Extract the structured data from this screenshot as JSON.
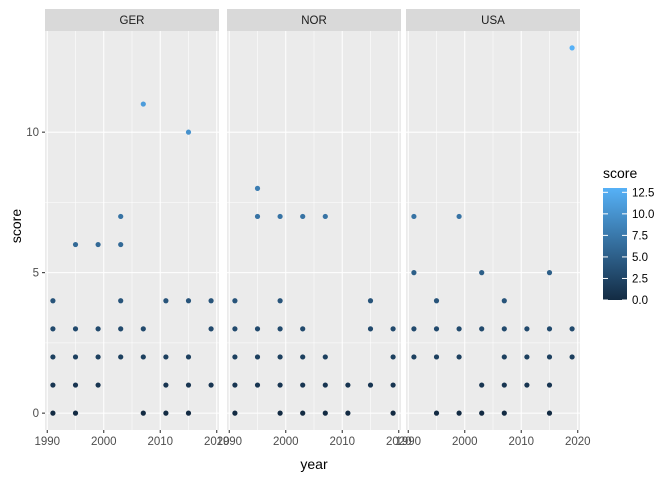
{
  "chart_data": {
    "type": "scatter",
    "facet_by": "country",
    "xlabel": "year",
    "ylabel": "score",
    "xlim": [
      1989.6,
      2020.4
    ],
    "ylim": [
      -0.6,
      13.6
    ],
    "x_ticks": [
      1990,
      2000,
      2010,
      2020
    ],
    "x_tick_labels": [
      "1990",
      "2000",
      "2010",
      "2020"
    ],
    "y_ticks": [
      0,
      5,
      10
    ],
    "y_tick_labels": [
      "0",
      "5",
      "10"
    ],
    "grid": true,
    "color_scale": {
      "title": "score",
      "low_color": "#132B43",
      "high_color": "#56B1F7",
      "limits": [
        0,
        13
      ],
      "breaks": [
        0,
        2.5,
        5,
        7.5,
        10,
        12.5
      ],
      "break_labels": [
        "0.0",
        "2.5",
        "5.0",
        "7.5",
        "10.0",
        "12.5"
      ],
      "legend_position": "right"
    },
    "panels": [
      {
        "facet": "GER",
        "points": [
          [
            1991,
            0
          ],
          [
            1991,
            1
          ],
          [
            1991,
            2
          ],
          [
            1991,
            3
          ],
          [
            1991,
            4
          ],
          [
            1995,
            0
          ],
          [
            1995,
            1
          ],
          [
            1995,
            2
          ],
          [
            1995,
            3
          ],
          [
            1995,
            6
          ],
          [
            1999,
            1
          ],
          [
            1999,
            2
          ],
          [
            1999,
            3
          ],
          [
            1999,
            6
          ],
          [
            2003,
            2
          ],
          [
            2003,
            3
          ],
          [
            2003,
            4
          ],
          [
            2003,
            6
          ],
          [
            2003,
            7
          ],
          [
            2007,
            0
          ],
          [
            2007,
            2
          ],
          [
            2007,
            3
          ],
          [
            2007,
            11
          ],
          [
            2011,
            0
          ],
          [
            2011,
            1
          ],
          [
            2011,
            2
          ],
          [
            2011,
            4
          ],
          [
            2015,
            0
          ],
          [
            2015,
            1
          ],
          [
            2015,
            2
          ],
          [
            2015,
            4
          ],
          [
            2015,
            10
          ],
          [
            2019,
            1
          ],
          [
            2019,
            3
          ],
          [
            2019,
            4
          ]
        ]
      },
      {
        "facet": "NOR",
        "points": [
          [
            1991,
            0
          ],
          [
            1991,
            1
          ],
          [
            1991,
            2
          ],
          [
            1991,
            3
          ],
          [
            1991,
            4
          ],
          [
            1995,
            1
          ],
          [
            1995,
            2
          ],
          [
            1995,
            3
          ],
          [
            1995,
            7
          ],
          [
            1995,
            8
          ],
          [
            1999,
            0
          ],
          [
            1999,
            1
          ],
          [
            1999,
            2
          ],
          [
            1999,
            3
          ],
          [
            1999,
            4
          ],
          [
            1999,
            7
          ],
          [
            2003,
            0
          ],
          [
            2003,
            1
          ],
          [
            2003,
            2
          ],
          [
            2003,
            3
          ],
          [
            2003,
            7
          ],
          [
            2007,
            0
          ],
          [
            2007,
            1
          ],
          [
            2007,
            2
          ],
          [
            2007,
            7
          ],
          [
            2011,
            0
          ],
          [
            2011,
            1
          ],
          [
            2015,
            1
          ],
          [
            2015,
            3
          ],
          [
            2015,
            4
          ],
          [
            2019,
            0
          ],
          [
            2019,
            1
          ],
          [
            2019,
            2
          ],
          [
            2019,
            3
          ]
        ]
      },
      {
        "facet": "USA",
        "points": [
          [
            1991,
            2
          ],
          [
            1991,
            3
          ],
          [
            1991,
            5
          ],
          [
            1991,
            7
          ],
          [
            1995,
            0
          ],
          [
            1995,
            2
          ],
          [
            1995,
            3
          ],
          [
            1995,
            4
          ],
          [
            1999,
            0
          ],
          [
            1999,
            2
          ],
          [
            1999,
            3
          ],
          [
            1999,
            7
          ],
          [
            2003,
            0
          ],
          [
            2003,
            1
          ],
          [
            2003,
            3
          ],
          [
            2003,
            5
          ],
          [
            2007,
            0
          ],
          [
            2007,
            1
          ],
          [
            2007,
            2
          ],
          [
            2007,
            3
          ],
          [
            2007,
            4
          ],
          [
            2011,
            1
          ],
          [
            2011,
            2
          ],
          [
            2011,
            3
          ],
          [
            2015,
            0
          ],
          [
            2015,
            1
          ],
          [
            2015,
            2
          ],
          [
            2015,
            3
          ],
          [
            2015,
            5
          ],
          [
            2019,
            2
          ],
          [
            2019,
            3
          ],
          [
            2019,
            13
          ]
        ]
      }
    ]
  }
}
